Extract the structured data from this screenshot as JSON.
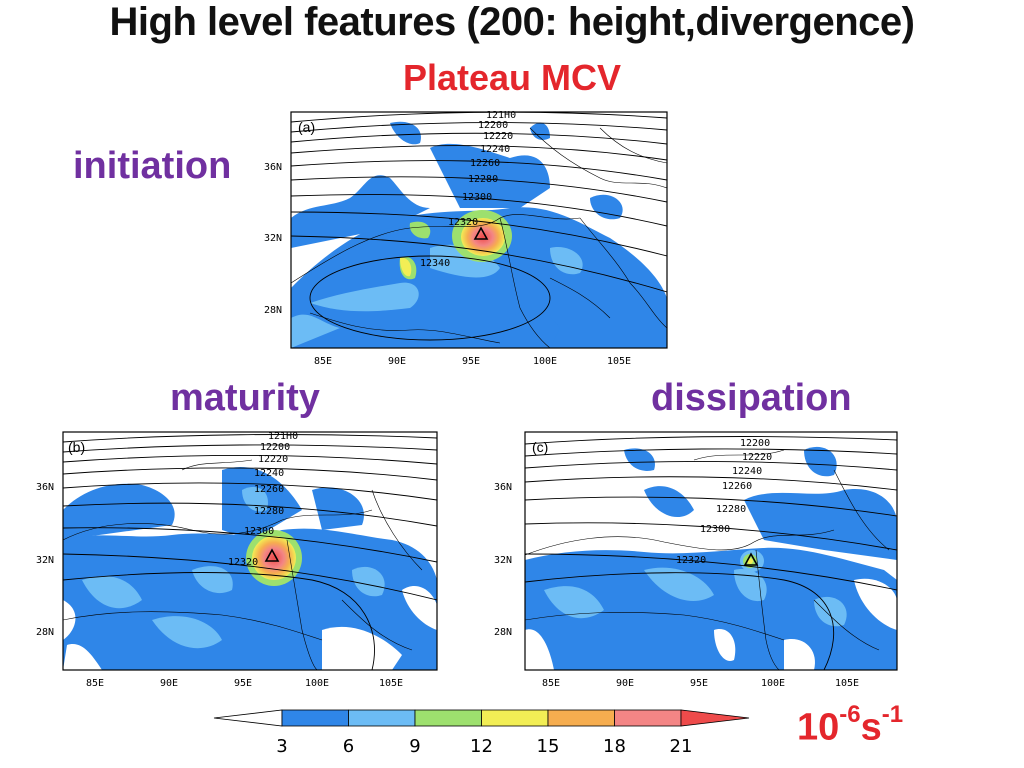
{
  "title": "High level features (200: height,divergence)",
  "subtitle": "Plateau MCV",
  "stages": {
    "initiation": "initiation",
    "maturity": "maturity",
    "dissipation": "dissipation"
  },
  "panels": [
    {
      "tag": "(a)",
      "contours": [
        "121H0",
        "12200",
        "12220",
        "12240",
        "12260",
        "12280",
        "12300",
        "12320",
        "12340"
      ]
    },
    {
      "tag": "(b)",
      "contours": [
        "121H0",
        "12200",
        "12220",
        "12240",
        "12260",
        "12280",
        "12300",
        "12320"
      ]
    },
    {
      "tag": "(c)",
      "contours": [
        "12200",
        "12220",
        "12240",
        "12260",
        "12280",
        "12300",
        "12320"
      ]
    }
  ],
  "lat_ticks": [
    "36N",
    "32N",
    "28N"
  ],
  "lon_ticks": [
    "85E",
    "90E",
    "95E",
    "100E",
    "105E"
  ],
  "colorbar": {
    "ticks": [
      "3",
      "6",
      "9",
      "12",
      "15",
      "18",
      "21"
    ],
    "colors": [
      "#ffffff",
      "#2f86e8",
      "#6cbcf5",
      "#9de06e",
      "#f2ee55",
      "#f6ad4f",
      "#f38585",
      "#ee4b4b"
    ]
  },
  "unit": {
    "base": "10",
    "exp1": "-6",
    "s": "s",
    "exp2": "-1"
  },
  "colors": {
    "title": "#111111",
    "accent": "#e4262c",
    "stage": "#7030a0"
  }
}
